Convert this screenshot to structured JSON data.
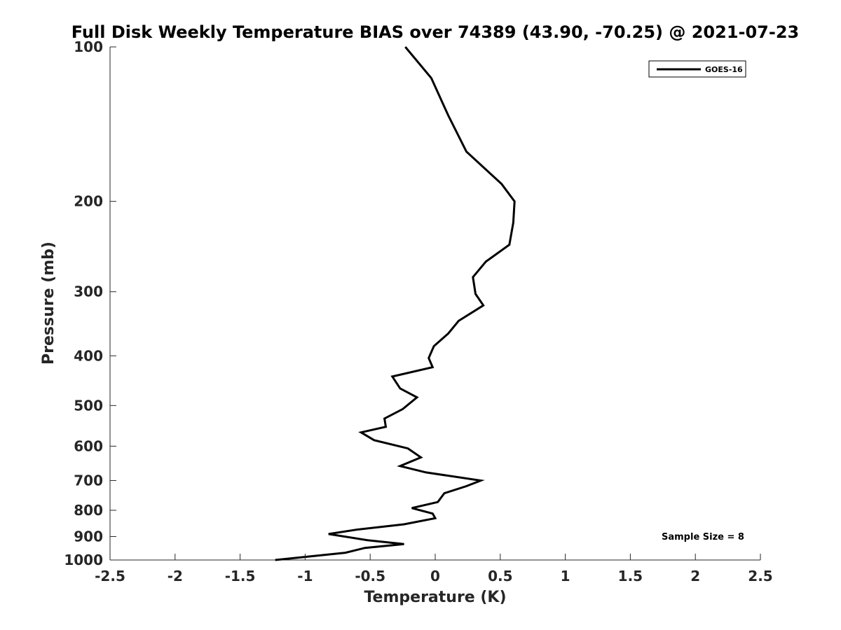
{
  "chart_data": {
    "type": "line",
    "title": "Full Disk Weekly Temperature BIAS over 74389 (43.90, -70.25) @ 2021-07-23",
    "xlabel": "Temperature (K)",
    "ylabel": "Pressure (mb)",
    "xlim": [
      -2.5,
      2.5
    ],
    "ylim": [
      100,
      1000
    ],
    "y_scale": "log",
    "y_reversed": true,
    "grid": false,
    "legend_position": "top-right",
    "x_ticks": [
      -2.5,
      -2,
      -1.5,
      -1,
      -0.5,
      0,
      0.5,
      1,
      1.5,
      2,
      2.5
    ],
    "x_tick_labels": [
      "-2.5",
      "-2",
      "-1.5",
      "-1",
      "-0.5",
      "0",
      "0.5",
      "1",
      "1.5",
      "2",
      "2.5"
    ],
    "y_ticks": [
      100,
      200,
      300,
      400,
      500,
      600,
      700,
      800,
      900,
      1000
    ],
    "y_tick_labels": [
      "100",
      "200",
      "300",
      "400",
      "500",
      "600",
      "700",
      "800",
      "900",
      "1000"
    ],
    "series": [
      {
        "name": "GOES-16",
        "color": "#000000",
        "points": [
          {
            "x": -0.23,
            "p": 100
          },
          {
            "x": -0.03,
            "p": 115
          },
          {
            "x": 0.1,
            "p": 136
          },
          {
            "x": 0.24,
            "p": 160
          },
          {
            "x": 0.51,
            "p": 185
          },
          {
            "x": 0.61,
            "p": 200
          },
          {
            "x": 0.6,
            "p": 220
          },
          {
            "x": 0.57,
            "p": 243
          },
          {
            "x": 0.39,
            "p": 262
          },
          {
            "x": 0.29,
            "p": 281
          },
          {
            "x": 0.31,
            "p": 303
          },
          {
            "x": 0.37,
            "p": 319
          },
          {
            "x": 0.18,
            "p": 342
          },
          {
            "x": 0.1,
            "p": 362
          },
          {
            "x": -0.01,
            "p": 383
          },
          {
            "x": -0.05,
            "p": 404
          },
          {
            "x": -0.02,
            "p": 421
          },
          {
            "x": -0.33,
            "p": 439
          },
          {
            "x": -0.27,
            "p": 463
          },
          {
            "x": -0.14,
            "p": 482
          },
          {
            "x": -0.25,
            "p": 508
          },
          {
            "x": -0.39,
            "p": 530
          },
          {
            "x": -0.38,
            "p": 550
          },
          {
            "x": -0.57,
            "p": 564
          },
          {
            "x": -0.47,
            "p": 584
          },
          {
            "x": -0.21,
            "p": 606
          },
          {
            "x": -0.11,
            "p": 631
          },
          {
            "x": -0.27,
            "p": 656
          },
          {
            "x": -0.07,
            "p": 675
          },
          {
            "x": 0.35,
            "p": 700
          },
          {
            "x": 0.24,
            "p": 718
          },
          {
            "x": 0.07,
            "p": 741
          },
          {
            "x": 0.02,
            "p": 771
          },
          {
            "x": -0.18,
            "p": 792
          },
          {
            "x": -0.02,
            "p": 812
          },
          {
            "x": 0.0,
            "p": 829
          },
          {
            "x": -0.24,
            "p": 852
          },
          {
            "x": -0.61,
            "p": 873
          },
          {
            "x": -0.82,
            "p": 890
          },
          {
            "x": -0.52,
            "p": 915
          },
          {
            "x": -0.24,
            "p": 931
          },
          {
            "x": -0.54,
            "p": 947
          },
          {
            "x": -0.69,
            "p": 968
          },
          {
            "x": -1.23,
            "p": 1000
          }
        ]
      }
    ]
  },
  "annotation": {
    "sample_size": "Sample Size = 8"
  }
}
